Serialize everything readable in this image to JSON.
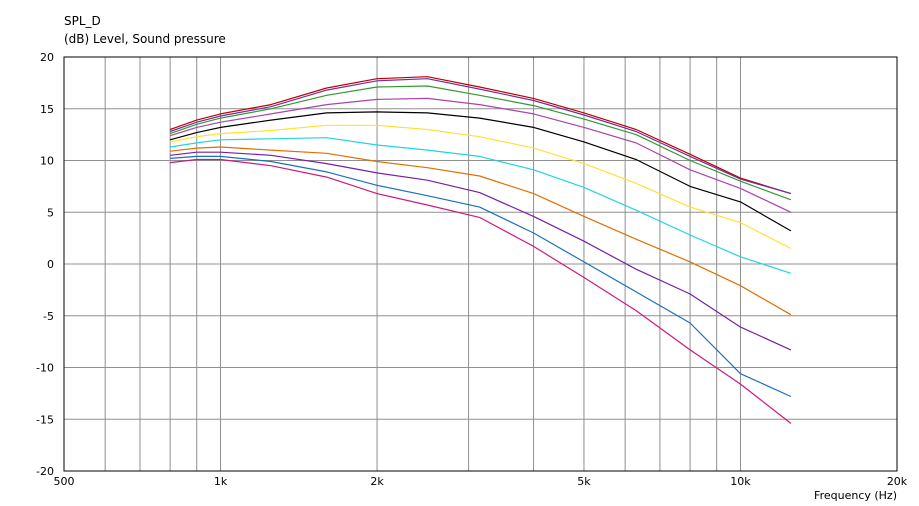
{
  "chart_data": {
    "type": "line",
    "title": "SPL_D",
    "subtitle": "(dB)  Level, Sound pressure",
    "xlabel": "Frequency  (Hz)",
    "ylabel": "",
    "x_scale": "log",
    "xlim": [
      500,
      20000
    ],
    "ylim": [
      -20,
      20
    ],
    "grid": true,
    "legend": "none",
    "x_ticks": [
      500,
      1000,
      2000,
      5000,
      10000,
      20000
    ],
    "x_tick_labels": [
      "500",
      "1k",
      "2k",
      "5k",
      "10k",
      "20k"
    ],
    "y_ticks": [
      -20,
      -15,
      -10,
      -5,
      0,
      5,
      10,
      15,
      20
    ],
    "y_tick_labels": [
      "-20",
      "-15",
      "-10",
      "-5",
      "0",
      "5",
      "10",
      "15",
      "20"
    ],
    "x": [
      800,
      900,
      1000,
      1250,
      1600,
      2000,
      2500,
      3150,
      4000,
      5000,
      6300,
      8000,
      10000,
      12500
    ],
    "series": [
      {
        "color": "#c00000",
        "values": [
          13.0,
          13.9,
          14.5,
          15.4,
          17.0,
          17.9,
          18.1,
          17.1,
          16.0,
          14.6,
          13.0,
          10.6,
          8.3,
          6.8
        ]
      },
      {
        "color": "#7030a0",
        "values": [
          12.8,
          13.7,
          14.3,
          15.2,
          16.8,
          17.7,
          17.9,
          16.9,
          15.8,
          14.4,
          12.8,
          10.4,
          8.2,
          6.8
        ]
      },
      {
        "color": "#339933",
        "values": [
          12.6,
          13.5,
          14.1,
          15.0,
          16.3,
          17.1,
          17.2,
          16.3,
          15.3,
          14.0,
          12.5,
          10.0,
          8.0,
          6.2
        ]
      },
      {
        "color": "#aa44aa",
        "values": [
          12.4,
          13.2,
          13.7,
          14.5,
          15.4,
          15.9,
          16.0,
          15.4,
          14.5,
          13.2,
          11.7,
          9.1,
          7.3,
          5.0
        ]
      },
      {
        "color": "#000000",
        "values": [
          12.0,
          12.7,
          13.2,
          13.9,
          14.6,
          14.7,
          14.6,
          14.1,
          13.2,
          11.8,
          10.1,
          7.5,
          6.0,
          3.2
        ]
      },
      {
        "color": "#ffe135",
        "values": [
          11.8,
          12.3,
          12.6,
          12.9,
          13.4,
          13.4,
          13.0,
          12.3,
          11.2,
          9.7,
          7.8,
          5.5,
          4.0,
          1.5
        ]
      },
      {
        "color": "#22d3e3",
        "values": [
          11.3,
          11.7,
          12.0,
          12.1,
          12.2,
          11.5,
          11.0,
          10.4,
          9.1,
          7.4,
          5.2,
          2.8,
          0.7,
          -0.9
        ]
      },
      {
        "color": "#e07000",
        "values": [
          10.9,
          11.2,
          11.3,
          11.0,
          10.7,
          9.9,
          9.3,
          8.5,
          6.8,
          4.6,
          2.4,
          0.2,
          -2.1,
          -4.9
        ]
      },
      {
        "color": "#7a1fa2",
        "values": [
          10.5,
          10.8,
          10.8,
          10.5,
          9.7,
          8.8,
          8.1,
          6.9,
          4.6,
          2.2,
          -0.5,
          -2.9,
          -6.1,
          -8.3
        ]
      },
      {
        "color": "#1a70c0",
        "values": [
          10.2,
          10.4,
          10.4,
          9.9,
          8.9,
          7.6,
          6.6,
          5.5,
          3.0,
          0.2,
          -2.7,
          -5.7,
          -10.6,
          -12.8
        ]
      },
      {
        "color": "#cc1a7a",
        "values": [
          9.8,
          10.1,
          10.1,
          9.5,
          8.4,
          6.8,
          5.7,
          4.5,
          1.7,
          -1.3,
          -4.5,
          -8.3,
          -11.6,
          -15.4
        ]
      }
    ]
  }
}
